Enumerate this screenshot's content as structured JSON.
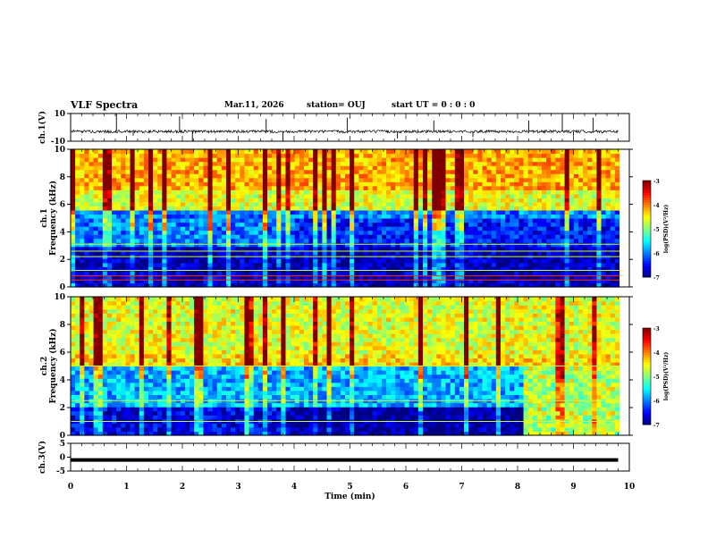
{
  "header": {
    "title": "VLF Spectra",
    "date": "Mar.11, 2026",
    "station": "station= OUJ",
    "start": "start  UT =   0 : 0  : 0"
  },
  "chart_data": [
    {
      "type": "line",
      "panel": "ch1-waveform",
      "title": "",
      "ylabel": "ch.1(V)",
      "ylim": [
        -10,
        10
      ],
      "yticks": [
        "10",
        "-10"
      ],
      "xlim": [
        0,
        10
      ],
      "baseline": -3,
      "noise_amplitude": 1,
      "spikes": [
        {
          "t": 0.82,
          "v": 10
        },
        {
          "t": 1.12,
          "v": -6
        },
        {
          "t": 1.95,
          "v": 8
        },
        {
          "t": 2.18,
          "v": -10
        },
        {
          "t": 3.5,
          "v": 6
        },
        {
          "t": 3.8,
          "v": -10
        },
        {
          "t": 4.95,
          "v": 7
        },
        {
          "t": 5.85,
          "v": -8
        },
        {
          "t": 6.5,
          "v": 5
        },
        {
          "t": 7.2,
          "v": -7
        },
        {
          "t": 8.2,
          "v": 5
        },
        {
          "t": 8.8,
          "v": 9
        },
        {
          "t": 9.0,
          "v": -6
        },
        {
          "t": 9.35,
          "v": 7
        }
      ]
    },
    {
      "type": "heatmap",
      "panel": "ch1-spectrogram",
      "ylabel": "ch.1\nFrequency  (kHz)",
      "ylim": [
        0,
        10
      ],
      "yticks": [
        "0",
        "2",
        "4",
        "6",
        "8",
        "10"
      ],
      "xlim": [
        0,
        9.8
      ],
      "colorbar": {
        "label": "log(PSD)(V²/Hz)",
        "range": [
          -7,
          -3
        ],
        "ticks": [
          "-3",
          "-4",
          "-5",
          "-6",
          "-7"
        ]
      },
      "background_level": -5.8,
      "bands": [
        {
          "from": 0,
          "to": 3.0,
          "level": -6.8
        },
        {
          "from": 3.0,
          "to": 5.5,
          "level": -6.0
        },
        {
          "from": 5.5,
          "to": 7.0,
          "level": -4.6
        },
        {
          "from": 7.0,
          "to": 10,
          "level": -4.2
        }
      ],
      "lines_khz": [
        0.5,
        0.8,
        1.2,
        2.2,
        2.6,
        3.1
      ]
    },
    {
      "type": "heatmap",
      "panel": "ch2-spectrogram",
      "ylabel": "ch.2\nFrequency  (kHz)",
      "ylim": [
        0,
        10
      ],
      "yticks": [
        "0",
        "2",
        "4",
        "6",
        "8",
        "10"
      ],
      "xlim": [
        0,
        9.8
      ],
      "colorbar": {
        "label": "log(PSD)(V²/Hz)",
        "range": [
          -7,
          -3
        ],
        "ticks": [
          "-3",
          "-4",
          "-5",
          "-6",
          "-7"
        ]
      },
      "background_level": -5.0,
      "bands": [
        {
          "from": 0,
          "to": 2.0,
          "level": -6.6
        },
        {
          "from": 2.0,
          "to": 5.0,
          "level": -5.8
        },
        {
          "from": 5.0,
          "to": 6.0,
          "level": -4.4
        },
        {
          "from": 6.0,
          "to": 10,
          "level": -4.6
        }
      ],
      "lines_khz": [
        1.0,
        2.5,
        5.0
      ]
    },
    {
      "type": "line",
      "panel": "ch3-waveform",
      "ylabel": "ch.3(V)",
      "ylim": [
        -5,
        5
      ],
      "yticks": [
        "5",
        "0",
        "-5"
      ],
      "xlim": [
        0,
        10
      ],
      "x": [
        0,
        9.8
      ],
      "values": [
        -1,
        -1
      ]
    }
  ],
  "x_axis": {
    "label": "Time  (min)",
    "ticks": [
      "0",
      "1",
      "2",
      "3",
      "4",
      "5",
      "6",
      "7",
      "8",
      "9",
      "10"
    ]
  }
}
